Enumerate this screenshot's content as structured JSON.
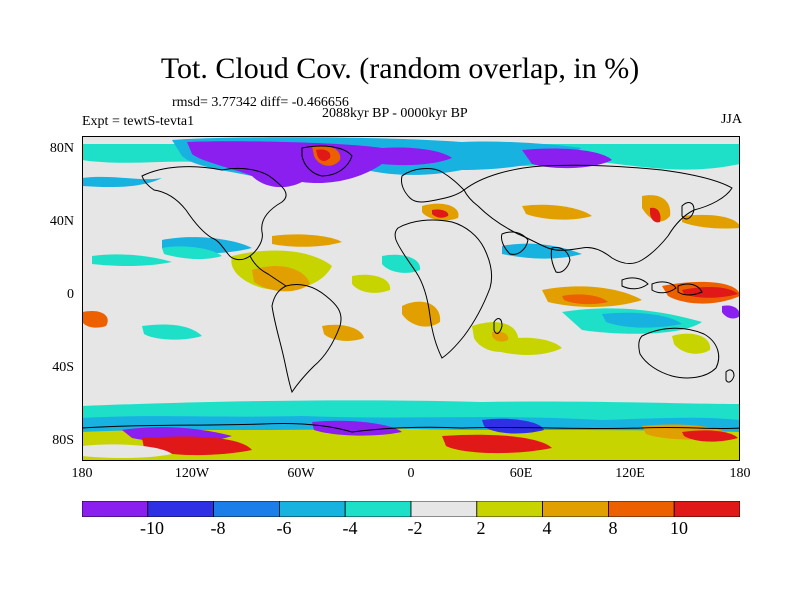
{
  "title": "Tot. Cloud Cov. (random overlap, in %)",
  "stats": "rmsd= 3.77342 diff= -0.466656",
  "period": "2088kyr BP - 0000kyr BP",
  "experiment": "Expt = tewtS-tevta1",
  "season": "JJA",
  "lat_labels": [
    "80N",
    "40N",
    "0",
    "40S",
    "80S"
  ],
  "lon_labels": [
    "180",
    "120W",
    "60W",
    "0",
    "60E",
    "120E",
    "180"
  ],
  "colorbar": {
    "labels": [
      "-10",
      "-8",
      "-6",
      "-4",
      "-2",
      "2",
      "4",
      "8",
      "10"
    ],
    "colors": [
      "#8a1ff0",
      "#2f2fe6",
      "#1c7ee8",
      "#18b2e0",
      "#1ee0c8",
      "#e6e6e6",
      "#c8d400",
      "#e2a000",
      "#ec6000",
      "#e01818"
    ]
  },
  "colors": {
    "background": "#e6e6e6",
    "coast": "#000000"
  }
}
